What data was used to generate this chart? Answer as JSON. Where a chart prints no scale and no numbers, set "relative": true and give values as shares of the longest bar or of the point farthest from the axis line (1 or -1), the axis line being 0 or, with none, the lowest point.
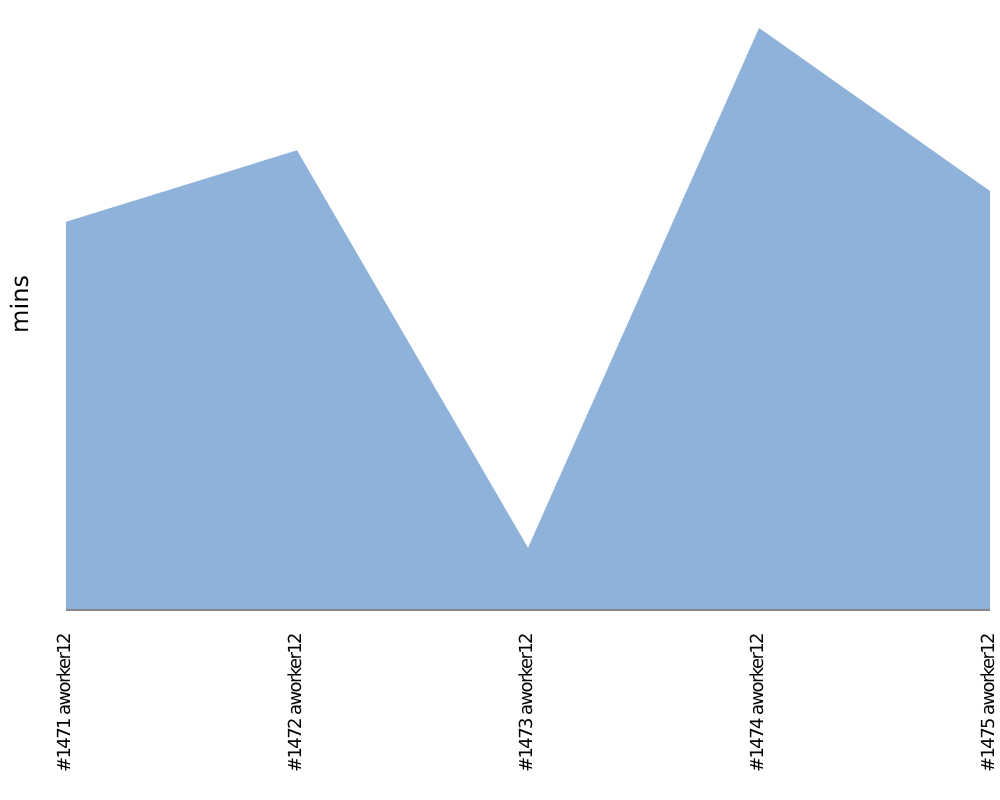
{
  "chart_data": {
    "type": "area",
    "ylabel": "mins",
    "relative": true,
    "color": "#8fb2da",
    "categories": [
      "#1471 aworker12",
      "#1472 aworker12",
      "#1473 aworker12",
      "#1474 aworker12",
      "#1475 aworker12"
    ],
    "values": [
      0.667,
      0.79,
      0.107,
      1,
      0.72
    ],
    "grid": false
  }
}
